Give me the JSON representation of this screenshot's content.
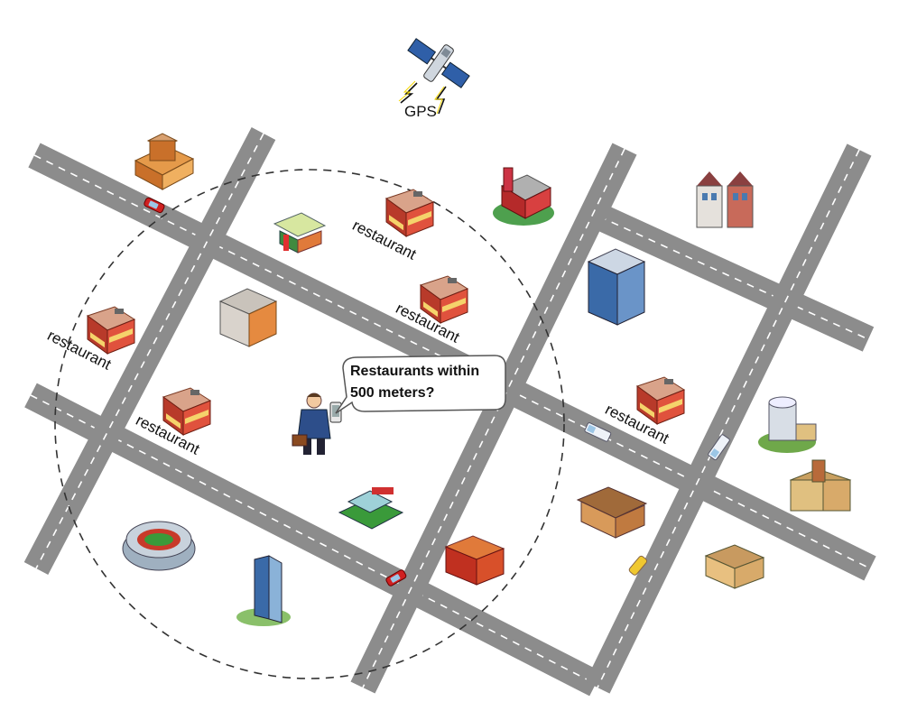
{
  "satellite": {
    "label": "GPS",
    "icon": "satellite-icon"
  },
  "query": {
    "line1": "Restaurants within",
    "line2": "500 meters?"
  },
  "search_radius": {
    "style": "dashed",
    "color": "#333333"
  },
  "restaurants": [
    {
      "label": "restaurant"
    },
    {
      "label": "restaurant"
    },
    {
      "label": "restaurant"
    },
    {
      "label": "restaurant"
    },
    {
      "label": "restaurant"
    }
  ],
  "colors": {
    "road": "#8c8c8c",
    "road_line": "#ffffff",
    "restaurant_wall": "#c0392b",
    "building_blue": "#5b7fa8"
  }
}
